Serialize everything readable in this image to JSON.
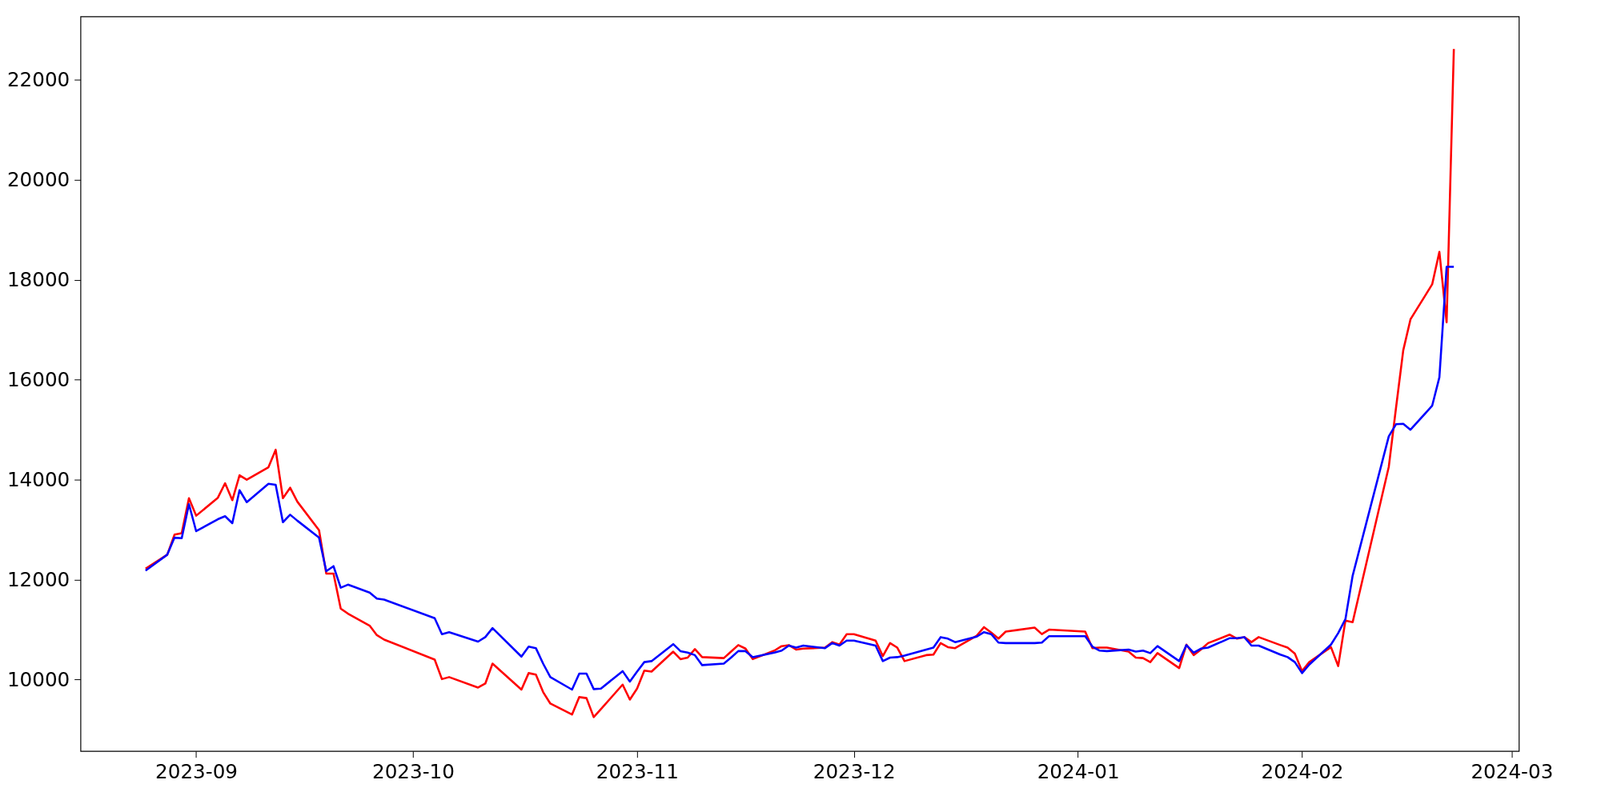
{
  "chart_data": {
    "type": "line",
    "x": [
      "2023-08-25",
      "2023-08-28",
      "2023-08-29",
      "2023-08-30",
      "2023-08-31",
      "2023-09-01",
      "2023-09-04",
      "2023-09-05",
      "2023-09-06",
      "2023-09-07",
      "2023-09-08",
      "2023-09-11",
      "2023-09-12",
      "2023-09-13",
      "2023-09-14",
      "2023-09-15",
      "2023-09-18",
      "2023-09-19",
      "2023-09-20",
      "2023-09-21",
      "2023-09-22",
      "2023-09-25",
      "2023-09-26",
      "2023-09-27",
      "2023-10-04",
      "2023-10-05",
      "2023-10-06",
      "2023-10-10",
      "2023-10-11",
      "2023-10-12",
      "2023-10-16",
      "2023-10-17",
      "2023-10-18",
      "2023-10-19",
      "2023-10-20",
      "2023-10-23",
      "2023-10-24",
      "2023-10-25",
      "2023-10-26",
      "2023-10-27",
      "2023-10-30",
      "2023-10-31",
      "2023-11-01",
      "2023-11-02",
      "2023-11-03",
      "2023-11-06",
      "2023-11-07",
      "2023-11-08",
      "2023-11-09",
      "2023-11-10",
      "2023-11-13",
      "2023-11-14",
      "2023-11-15",
      "2023-11-16",
      "2023-11-17",
      "2023-11-20",
      "2023-11-21",
      "2023-11-22",
      "2023-11-23",
      "2023-11-24",
      "2023-11-27",
      "2023-11-28",
      "2023-11-29",
      "2023-11-30",
      "2023-12-01",
      "2023-12-04",
      "2023-12-05",
      "2023-12-06",
      "2023-12-07",
      "2023-12-08",
      "2023-12-11",
      "2023-12-12",
      "2023-12-13",
      "2023-12-14",
      "2023-12-15",
      "2023-12-18",
      "2023-12-19",
      "2023-12-20",
      "2023-12-21",
      "2023-12-22",
      "2023-12-26",
      "2023-12-27",
      "2023-12-28",
      "2024-01-02",
      "2024-01-03",
      "2024-01-04",
      "2024-01-05",
      "2024-01-08",
      "2024-01-09",
      "2024-01-10",
      "2024-01-11",
      "2024-01-12",
      "2024-01-15",
      "2024-01-16",
      "2024-01-17",
      "2024-01-18",
      "2024-01-19",
      "2024-01-22",
      "2024-01-23",
      "2024-01-24",
      "2024-01-25",
      "2024-01-26",
      "2024-01-29",
      "2024-01-30",
      "2024-01-31",
      "2024-02-01",
      "2024-02-02",
      "2024-02-05",
      "2024-02-06",
      "2024-02-07",
      "2024-02-08",
      "2024-02-13",
      "2024-02-14",
      "2024-02-15",
      "2024-02-16",
      "2024-02-19",
      "2024-02-20",
      "2024-02-21",
      "2024-02-22"
    ],
    "series": [
      {
        "color": "#ff0000",
        "values": [
          12220,
          12500,
          12900,
          12930,
          13630,
          13280,
          13640,
          13930,
          13590,
          14090,
          14000,
          14250,
          14600,
          13630,
          13840,
          13560,
          12990,
          12120,
          12120,
          11420,
          11320,
          11080,
          10890,
          10800,
          10400,
          10010,
          10050,
          9840,
          9920,
          10320,
          9800,
          10130,
          10100,
          9750,
          9520,
          9300,
          9650,
          9630,
          9250,
          9410,
          9900,
          9600,
          9820,
          10180,
          10160,
          10560,
          10410,
          10440,
          10610,
          10450,
          10430,
          10560,
          10690,
          10620,
          10410,
          10580,
          10670,
          10690,
          10600,
          10620,
          10640,
          10750,
          10700,
          10910,
          10910,
          10780,
          10470,
          10730,
          10640,
          10370,
          10490,
          10500,
          10730,
          10650,
          10630,
          10880,
          11050,
          10940,
          10820,
          10960,
          11040,
          10910,
          11000,
          10960,
          10630,
          10640,
          10640,
          10560,
          10440,
          10430,
          10350,
          10530,
          10230,
          10700,
          10490,
          10600,
          10730,
          10900,
          10820,
          10850,
          10750,
          10850,
          10690,
          10640,
          10520,
          10170,
          10350,
          10650,
          10270,
          11180,
          11150,
          14260,
          15440,
          16590,
          17210,
          17910,
          18560,
          17150,
          22620
        ]
      },
      {
        "color": "#0000ff",
        "values": [
          12180,
          12500,
          12840,
          12830,
          13510,
          12970,
          13210,
          13270,
          13130,
          13790,
          13550,
          13920,
          13900,
          13150,
          13300,
          13180,
          12840,
          12170,
          12270,
          11840,
          11900,
          11740,
          11620,
          11600,
          11230,
          10910,
          10950,
          10760,
          10850,
          11030,
          10460,
          10660,
          10630,
          10320,
          10050,
          9800,
          10120,
          10120,
          9810,
          9820,
          10170,
          9960,
          10160,
          10350,
          10370,
          10710,
          10570,
          10540,
          10490,
          10290,
          10320,
          10440,
          10570,
          10570,
          10450,
          10540,
          10580,
          10680,
          10640,
          10680,
          10630,
          10730,
          10680,
          10780,
          10780,
          10680,
          10370,
          10440,
          10450,
          10480,
          10600,
          10640,
          10850,
          10820,
          10750,
          10860,
          10950,
          10910,
          10740,
          10730,
          10730,
          10740,
          10870,
          10870,
          10660,
          10580,
          10570,
          10600,
          10560,
          10580,
          10530,
          10670,
          10370,
          10690,
          10540,
          10620,
          10640,
          10830,
          10830,
          10850,
          10680,
          10680,
          10500,
          10450,
          10350,
          10130,
          10300,
          10700,
          10930,
          11210,
          12080,
          14870,
          15110,
          15120,
          15000,
          15480,
          16050,
          18260,
          18260
        ]
      }
    ],
    "xlim": [
      "2023-08-16",
      "2024-03-02"
    ],
    "xticks": [
      "2023-09",
      "2023-10",
      "2023-11",
      "2023-12",
      "2024-01",
      "2024-02",
      "2024-03"
    ],
    "ylim": [
      8570,
      23270
    ],
    "yticks": [
      10000,
      12000,
      14000,
      16000,
      18000,
      20000,
      22000
    ],
    "grid": false,
    "marker": "none",
    "line_style": "solid"
  }
}
